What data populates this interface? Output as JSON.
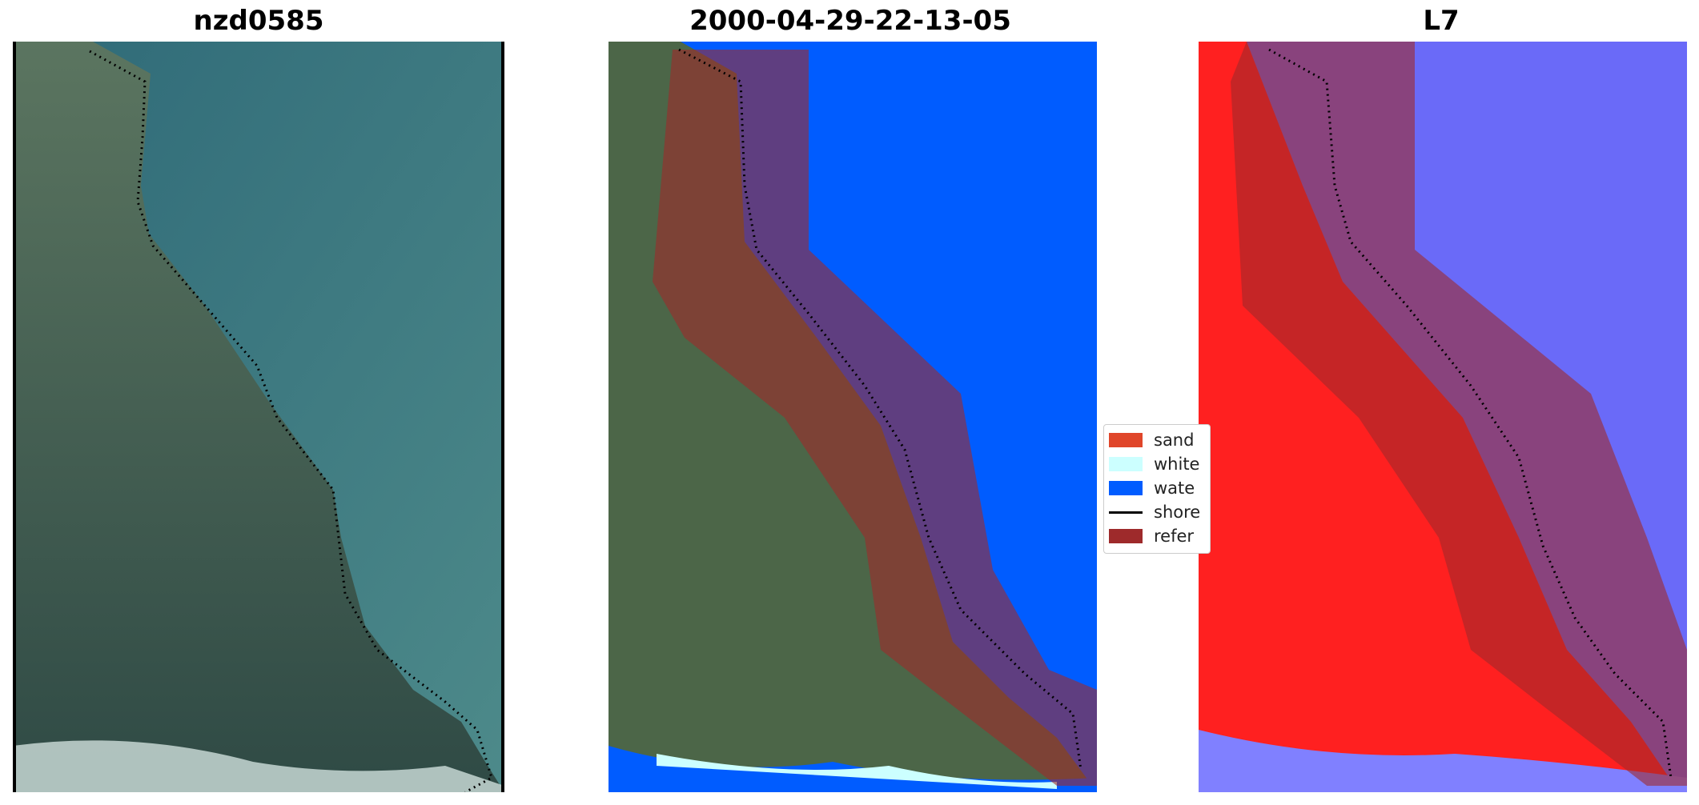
{
  "panels": [
    {
      "title": "nzd0585"
    },
    {
      "title": "2000-04-29-22-13-05"
    },
    {
      "title": "L7"
    }
  ],
  "legend": {
    "items": [
      {
        "label": "sand",
        "color": "#e0462a",
        "kind": "patch"
      },
      {
        "label": "white",
        "color": "#ccffff",
        "kind": "patch"
      },
      {
        "label": "wate",
        "color": "#005cff",
        "kind": "patch"
      },
      {
        "label": "shore",
        "color": "#000000",
        "kind": "line"
      },
      {
        "label": "refer",
        "color": "#9e2a2b",
        "kind": "patch"
      }
    ]
  },
  "colors": {
    "water_class": "#005cff",
    "white_water": "#ccffff",
    "reference_buffer": "#9e2a2b",
    "rgb_sea": "#3f6f76",
    "rgb_land": "#4c6648",
    "index_land": "#ff2020",
    "index_water": "#6a6af8"
  }
}
